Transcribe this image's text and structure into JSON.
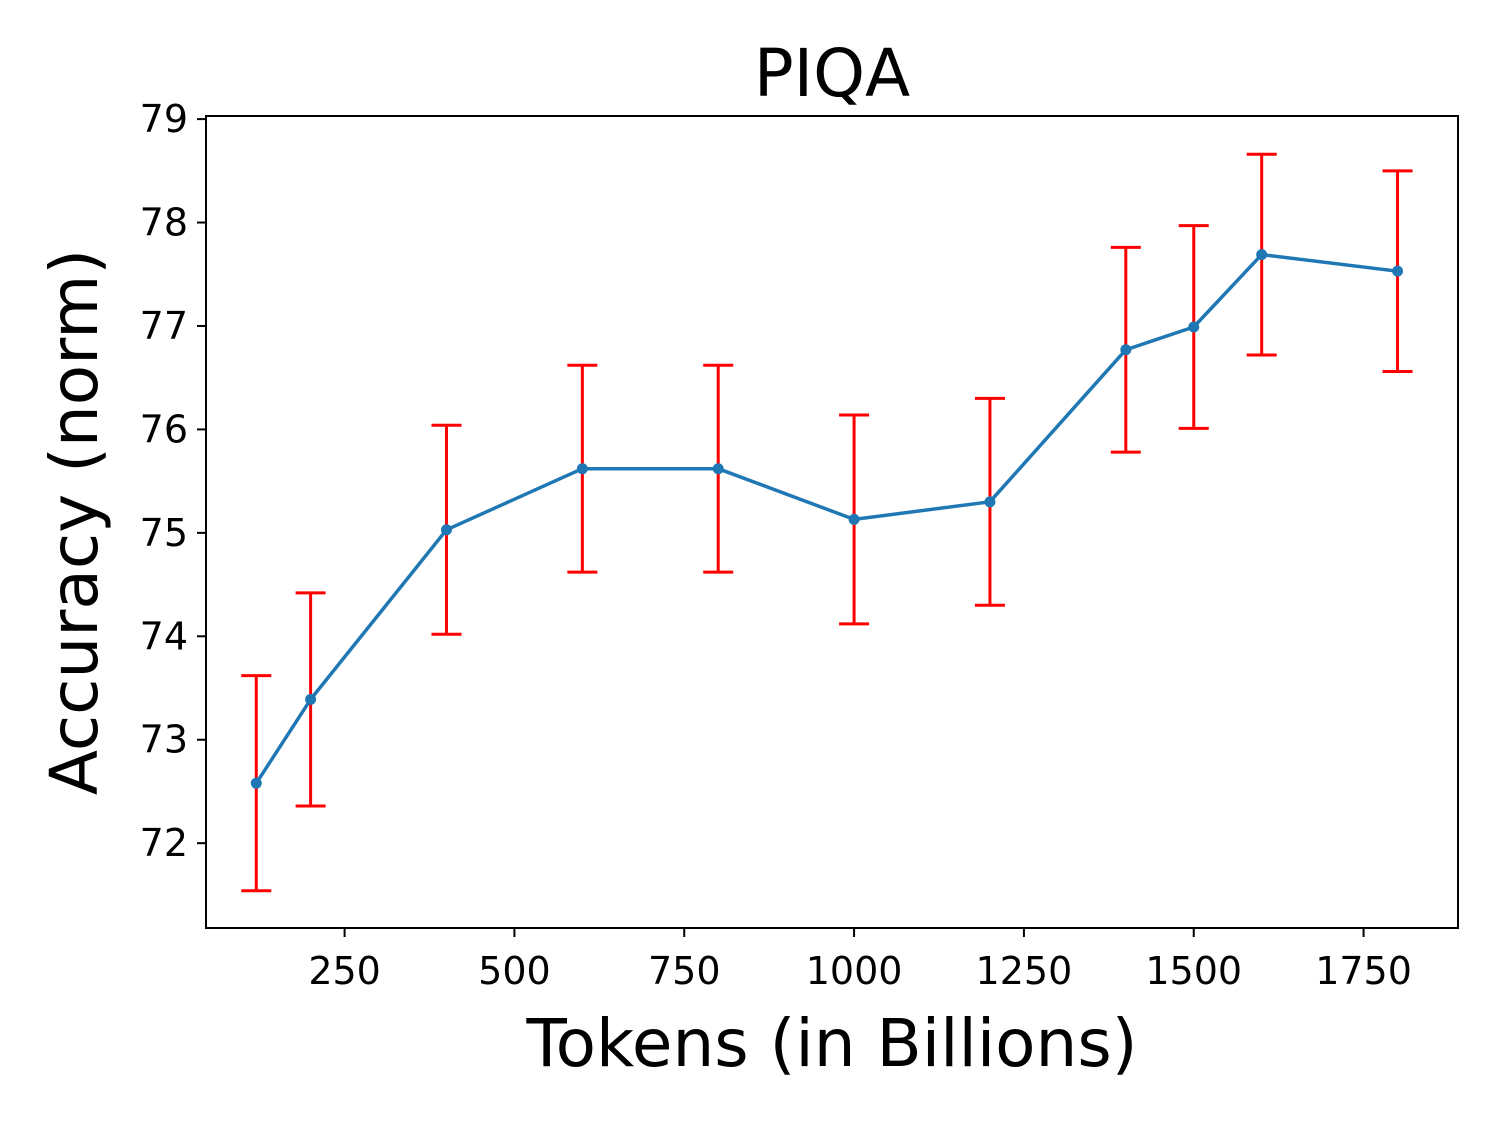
{
  "chart_data": {
    "type": "line",
    "title": "PIQA",
    "xlabel": "Tokens (in Billions)",
    "ylabel": "Accuracy (norm)",
    "xlim": [
      46,
      1889
    ],
    "ylim": [
      71.18,
      79.03
    ],
    "xticks": [
      250,
      500,
      750,
      1000,
      1250,
      1500,
      1750
    ],
    "yticks": [
      72,
      73,
      74,
      75,
      76,
      77,
      78,
      79
    ],
    "grid": false,
    "legend": "none",
    "series": [
      {
        "x": [
          120,
          200,
          400,
          600,
          800,
          1000,
          1200,
          1400,
          1500,
          1600,
          1800
        ],
        "y": [
          72.58,
          73.39,
          75.03,
          75.62,
          75.62,
          75.13,
          75.3,
          76.77,
          76.99,
          77.69,
          77.53
        ],
        "error": [
          1.04,
          1.03,
          1.01,
          1.0,
          1.0,
          1.01,
          1.0,
          0.99,
          0.98,
          0.97,
          0.97
        ],
        "color": "#1f77b4",
        "error_color": "#ff0000"
      }
    ]
  }
}
